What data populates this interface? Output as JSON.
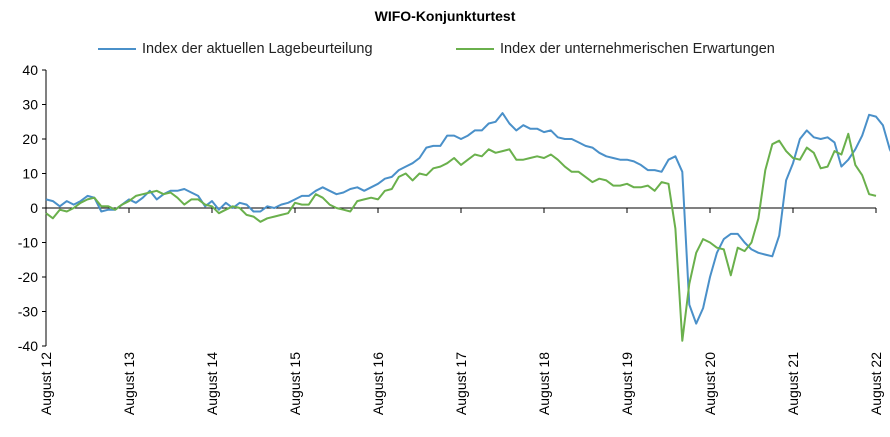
{
  "chart_data": {
    "type": "line",
    "title": "WIFO-Konjunkturtest",
    "xlabel": "",
    "ylabel": "",
    "ylim": [
      -40,
      40
    ],
    "yticks": [
      40,
      30,
      20,
      10,
      0,
      -10,
      -20,
      -30,
      -40
    ],
    "x_range": [
      "2012-08",
      "2022-08"
    ],
    "xtick_labels": [
      "August 12",
      "August 13",
      "August 14",
      "August 15",
      "August 16",
      "August 17",
      "August 18",
      "August 19",
      "August 20",
      "August 21",
      "August 22"
    ],
    "legend_position": "top",
    "grid": false,
    "series": [
      {
        "name": "Index der aktuellen Lagebeurteilung",
        "color": "#4a90c9",
        "points": [
          [
            "2012-08",
            2.5
          ],
          [
            "2012-09",
            2
          ],
          [
            "2012-10",
            0.5
          ],
          [
            "2012-11",
            2
          ],
          [
            "2012-12",
            1
          ],
          [
            "2013-01",
            2
          ],
          [
            "2013-02",
            3.5
          ],
          [
            "2013-03",
            3
          ],
          [
            "2013-04",
            -1
          ],
          [
            "2013-05",
            -0.5
          ],
          [
            "2013-06",
            -0.5
          ],
          [
            "2013-07",
            1
          ],
          [
            "2013-08",
            2.5
          ],
          [
            "2013-09",
            1.5
          ],
          [
            "2013-10",
            3
          ],
          [
            "2013-11",
            5
          ],
          [
            "2013-12",
            2.5
          ],
          [
            "2014-01",
            4
          ],
          [
            "2014-02",
            5
          ],
          [
            "2014-03",
            5
          ],
          [
            "2014-04",
            5.5
          ],
          [
            "2014-05",
            4.5
          ],
          [
            "2014-06",
            3.5
          ],
          [
            "2014-07",
            0.5
          ],
          [
            "2014-08",
            2
          ],
          [
            "2014-09",
            -0.5
          ],
          [
            "2014-10",
            1.5
          ],
          [
            "2014-11",
            0
          ],
          [
            "2014-12",
            1.5
          ],
          [
            "2015-01",
            1
          ],
          [
            "2015-02",
            -1
          ],
          [
            "2015-03",
            -1
          ],
          [
            "2015-04",
            0.5
          ],
          [
            "2015-05",
            0
          ],
          [
            "2015-06",
            1
          ],
          [
            "2015-07",
            1.5
          ],
          [
            "2015-08",
            2.5
          ],
          [
            "2015-09",
            3.5
          ],
          [
            "2015-10",
            3.5
          ],
          [
            "2015-11",
            5
          ],
          [
            "2015-12",
            6
          ],
          [
            "2016-01",
            5
          ],
          [
            "2016-02",
            4
          ],
          [
            "2016-03",
            4.5
          ],
          [
            "2016-04",
            5.5
          ],
          [
            "2016-05",
            6
          ],
          [
            "2016-06",
            5
          ],
          [
            "2016-07",
            6
          ],
          [
            "2016-08",
            7
          ],
          [
            "2016-09",
            8.5
          ],
          [
            "2016-10",
            9
          ],
          [
            "2016-11",
            11
          ],
          [
            "2016-12",
            12
          ],
          [
            "2017-01",
            13
          ],
          [
            "2017-02",
            14.5
          ],
          [
            "2017-03",
            17.5
          ],
          [
            "2017-04",
            18
          ],
          [
            "2017-05",
            18
          ],
          [
            "2017-06",
            21
          ],
          [
            "2017-07",
            21
          ],
          [
            "2017-08",
            20
          ],
          [
            "2017-09",
            21
          ],
          [
            "2017-10",
            22.5
          ],
          [
            "2017-11",
            22.5
          ],
          [
            "2017-12",
            24.5
          ],
          [
            "2018-01",
            25
          ],
          [
            "2018-02",
            27.5
          ],
          [
            "2018-03",
            24.5
          ],
          [
            "2018-04",
            22.5
          ],
          [
            "2018-05",
            24
          ],
          [
            "2018-06",
            23
          ],
          [
            "2018-07",
            23
          ],
          [
            "2018-08",
            22
          ],
          [
            "2018-09",
            22.5
          ],
          [
            "2018-10",
            20.5
          ],
          [
            "2018-11",
            20
          ],
          [
            "2018-12",
            20
          ],
          [
            "2019-01",
            19
          ],
          [
            "2019-02",
            18
          ],
          [
            "2019-03",
            17.5
          ],
          [
            "2019-04",
            16
          ],
          [
            "2019-05",
            15
          ],
          [
            "2019-06",
            14.5
          ],
          [
            "2019-07",
            14
          ],
          [
            "2019-08",
            14
          ],
          [
            "2019-09",
            13.5
          ],
          [
            "2019-10",
            12.5
          ],
          [
            "2019-11",
            11
          ],
          [
            "2019-12",
            11
          ],
          [
            "2020-01",
            10.5
          ],
          [
            "2020-02",
            14
          ],
          [
            "2020-03",
            15
          ],
          [
            "2020-04",
            10.5
          ],
          [
            "2020-05",
            -28
          ],
          [
            "2020-06",
            -33.5
          ],
          [
            "2020-07",
            -29
          ],
          [
            "2020-08",
            -20
          ],
          [
            "2020-09",
            -13
          ],
          [
            "2020-10",
            -9
          ],
          [
            "2020-11",
            -7.5
          ],
          [
            "2020-12",
            -7.5
          ],
          [
            "2021-01",
            -10
          ],
          [
            "2021-02",
            -12
          ],
          [
            "2021-03",
            -13
          ],
          [
            "2021-04",
            -13.5
          ],
          [
            "2021-05",
            -14
          ],
          [
            "2021-06",
            -8
          ],
          [
            "2021-07",
            8
          ],
          [
            "2021-08",
            13
          ],
          [
            "2021-09",
            20
          ],
          [
            "2021-10",
            22.5
          ],
          [
            "2021-11",
            20.5
          ],
          [
            "2021-12",
            20
          ],
          [
            "2022-01",
            20.5
          ],
          [
            "2022-02",
            19
          ],
          [
            "2022-03",
            12
          ],
          [
            "2022-04",
            14
          ],
          [
            "2022-05",
            17
          ],
          [
            "2022-06",
            21
          ],
          [
            "2022-07",
            27
          ],
          [
            "2022-08",
            26.5
          ],
          [
            "2022-09",
            24
          ],
          [
            "2022-10",
            17
          ],
          [
            "2022-11",
            13
          ]
        ]
      },
      {
        "name": "Index der unternehmerischen Erwartungen",
        "color": "#6ab04c",
        "points": [
          [
            "2012-08",
            -1.5
          ],
          [
            "2012-09",
            -3
          ],
          [
            "2012-10",
            -0.5
          ],
          [
            "2012-11",
            -1
          ],
          [
            "2012-12",
            0
          ],
          [
            "2013-01",
            1.5
          ],
          [
            "2013-02",
            2.5
          ],
          [
            "2013-03",
            3
          ],
          [
            "2013-04",
            0.5
          ],
          [
            "2013-05",
            0.5
          ],
          [
            "2013-06",
            -0.5
          ],
          [
            "2013-07",
            1
          ],
          [
            "2013-08",
            2
          ],
          [
            "2013-09",
            3.5
          ],
          [
            "2013-10",
            4
          ],
          [
            "2013-11",
            4.5
          ],
          [
            "2013-12",
            5
          ],
          [
            "2014-01",
            4
          ],
          [
            "2014-02",
            4.5
          ],
          [
            "2014-03",
            3
          ],
          [
            "2014-04",
            1
          ],
          [
            "2014-05",
            2.5
          ],
          [
            "2014-06",
            2.5
          ],
          [
            "2014-07",
            1
          ],
          [
            "2014-08",
            0.5
          ],
          [
            "2014-09",
            -1.5
          ],
          [
            "2014-10",
            -0.5
          ],
          [
            "2014-11",
            0.5
          ],
          [
            "2014-12",
            0
          ],
          [
            "2015-01",
            -2
          ],
          [
            "2015-02",
            -2.5
          ],
          [
            "2015-03",
            -4
          ],
          [
            "2015-04",
            -3
          ],
          [
            "2015-05",
            -2.5
          ],
          [
            "2015-06",
            -2
          ],
          [
            "2015-07",
            -1.5
          ],
          [
            "2015-08",
            1.5
          ],
          [
            "2015-09",
            1
          ],
          [
            "2015-10",
            1
          ],
          [
            "2015-11",
            4
          ],
          [
            "2015-12",
            3
          ],
          [
            "2016-01",
            1
          ],
          [
            "2016-02",
            0
          ],
          [
            "2016-03",
            -0.5
          ],
          [
            "2016-04",
            -1
          ],
          [
            "2016-05",
            2
          ],
          [
            "2016-06",
            2.5
          ],
          [
            "2016-07",
            3
          ],
          [
            "2016-08",
            2.5
          ],
          [
            "2016-09",
            5
          ],
          [
            "2016-10",
            5.5
          ],
          [
            "2016-11",
            9
          ],
          [
            "2016-12",
            10
          ],
          [
            "2017-01",
            8
          ],
          [
            "2017-02",
            10
          ],
          [
            "2017-03",
            9.5
          ],
          [
            "2017-04",
            11.5
          ],
          [
            "2017-05",
            12
          ],
          [
            "2017-06",
            13
          ],
          [
            "2017-07",
            14.5
          ],
          [
            "2017-08",
            12.5
          ],
          [
            "2017-09",
            14
          ],
          [
            "2017-10",
            15.5
          ],
          [
            "2017-11",
            15
          ],
          [
            "2017-12",
            17
          ],
          [
            "2018-01",
            16
          ],
          [
            "2018-02",
            16.5
          ],
          [
            "2018-03",
            17
          ],
          [
            "2018-04",
            14
          ],
          [
            "2018-05",
            14
          ],
          [
            "2018-06",
            14.5
          ],
          [
            "2018-07",
            15
          ],
          [
            "2018-08",
            14.5
          ],
          [
            "2018-09",
            15.5
          ],
          [
            "2018-10",
            14
          ],
          [
            "2018-11",
            12
          ],
          [
            "2018-12",
            10.5
          ],
          [
            "2019-01",
            10.5
          ],
          [
            "2019-02",
            9
          ],
          [
            "2019-03",
            7.5
          ],
          [
            "2019-04",
            8.5
          ],
          [
            "2019-05",
            8
          ],
          [
            "2019-06",
            6.5
          ],
          [
            "2019-07",
            6.5
          ],
          [
            "2019-08",
            7
          ],
          [
            "2019-09",
            6
          ],
          [
            "2019-10",
            6
          ],
          [
            "2019-11",
            6.5
          ],
          [
            "2019-12",
            5
          ],
          [
            "2020-01",
            7.5
          ],
          [
            "2020-02",
            7
          ],
          [
            "2020-03",
            -6
          ],
          [
            "2020-04",
            -38.5
          ],
          [
            "2020-05",
            -22
          ],
          [
            "2020-06",
            -13
          ],
          [
            "2020-07",
            -9
          ],
          [
            "2020-08",
            -10
          ],
          [
            "2020-09",
            -11.5
          ],
          [
            "2020-10",
            -12
          ],
          [
            "2020-11",
            -19.5
          ],
          [
            "2020-12",
            -11.5
          ],
          [
            "2021-01",
            -12.5
          ],
          [
            "2021-02",
            -10
          ],
          [
            "2021-03",
            -3
          ],
          [
            "2021-04",
            11
          ],
          [
            "2021-05",
            18.5
          ],
          [
            "2021-06",
            19.5
          ],
          [
            "2021-07",
            16.5
          ],
          [
            "2021-08",
            14.5
          ],
          [
            "2021-09",
            14
          ],
          [
            "2021-10",
            17.5
          ],
          [
            "2021-11",
            16
          ],
          [
            "2021-12",
            11.5
          ],
          [
            "2022-01",
            12
          ],
          [
            "2022-02",
            16.5
          ],
          [
            "2022-03",
            15.5
          ],
          [
            "2022-04",
            21.5
          ],
          [
            "2022-05",
            12.5
          ],
          [
            "2022-06",
            9.5
          ],
          [
            "2022-07",
            4
          ],
          [
            "2022-08",
            3.5
          ]
        ]
      }
    ]
  }
}
